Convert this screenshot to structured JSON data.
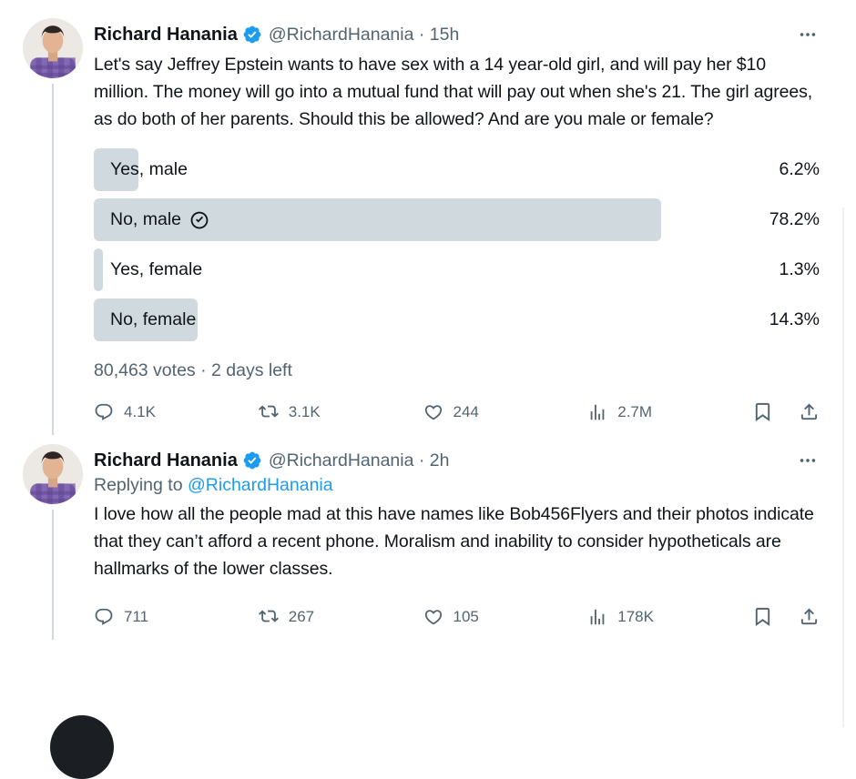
{
  "colors": {
    "accent_blue": "#1d9bf0",
    "text_primary": "#0f1419",
    "text_secondary": "#536471",
    "poll_bar": "#cfd9de"
  },
  "icons": [
    "verified-badge-icon",
    "more-icon",
    "vote-check-icon",
    "reply-icon",
    "repost-icon",
    "like-icon",
    "views-icon",
    "bookmark-icon",
    "share-icon"
  ],
  "thread": {
    "tweets": [
      {
        "author": "Richard Hanania",
        "handle_time": "@RichardHanania · 15h",
        "text": "Let's say Jeffrey Epstein wants to have sex with a 14 year-old girl, and will pay her $10 million. The money will go into a mutual fund that will pay out when she's 21. The girl agrees, as do both of her parents. Should this be allowed? And are you male or female?",
        "poll": {
          "options": [
            {
              "label": "Yes, male",
              "percent_label": "6.2%",
              "percent": 6.2,
              "voted": false
            },
            {
              "label": "No, male",
              "percent_label": "78.2%",
              "percent": 78.2,
              "voted": true
            },
            {
              "label": "Yes, female",
              "percent_label": "1.3%",
              "percent": 1.3,
              "voted": false
            },
            {
              "label": "No, female",
              "percent_label": "14.3%",
              "percent": 14.3,
              "voted": false
            }
          ],
          "meta": "80,463 votes · 2 days left"
        },
        "stats": {
          "replies": "4.1K",
          "reposts": "3.1K",
          "likes": "244",
          "views": "2.7M"
        }
      },
      {
        "author": "Richard Hanania",
        "handle_time": "@RichardHanania · 2h",
        "replying_to_label": "Replying to ",
        "replying_to_handle": "@RichardHanania",
        "text": "I love how all the people mad at this have names like Bob456Flyers and their photos indicate that they can’t afford a recent phone. Moralism and inability to consider hypotheticals are hallmarks of the lower classes.",
        "stats": {
          "replies": "711",
          "reposts": "267",
          "likes": "105",
          "views": "178K"
        }
      }
    ]
  }
}
